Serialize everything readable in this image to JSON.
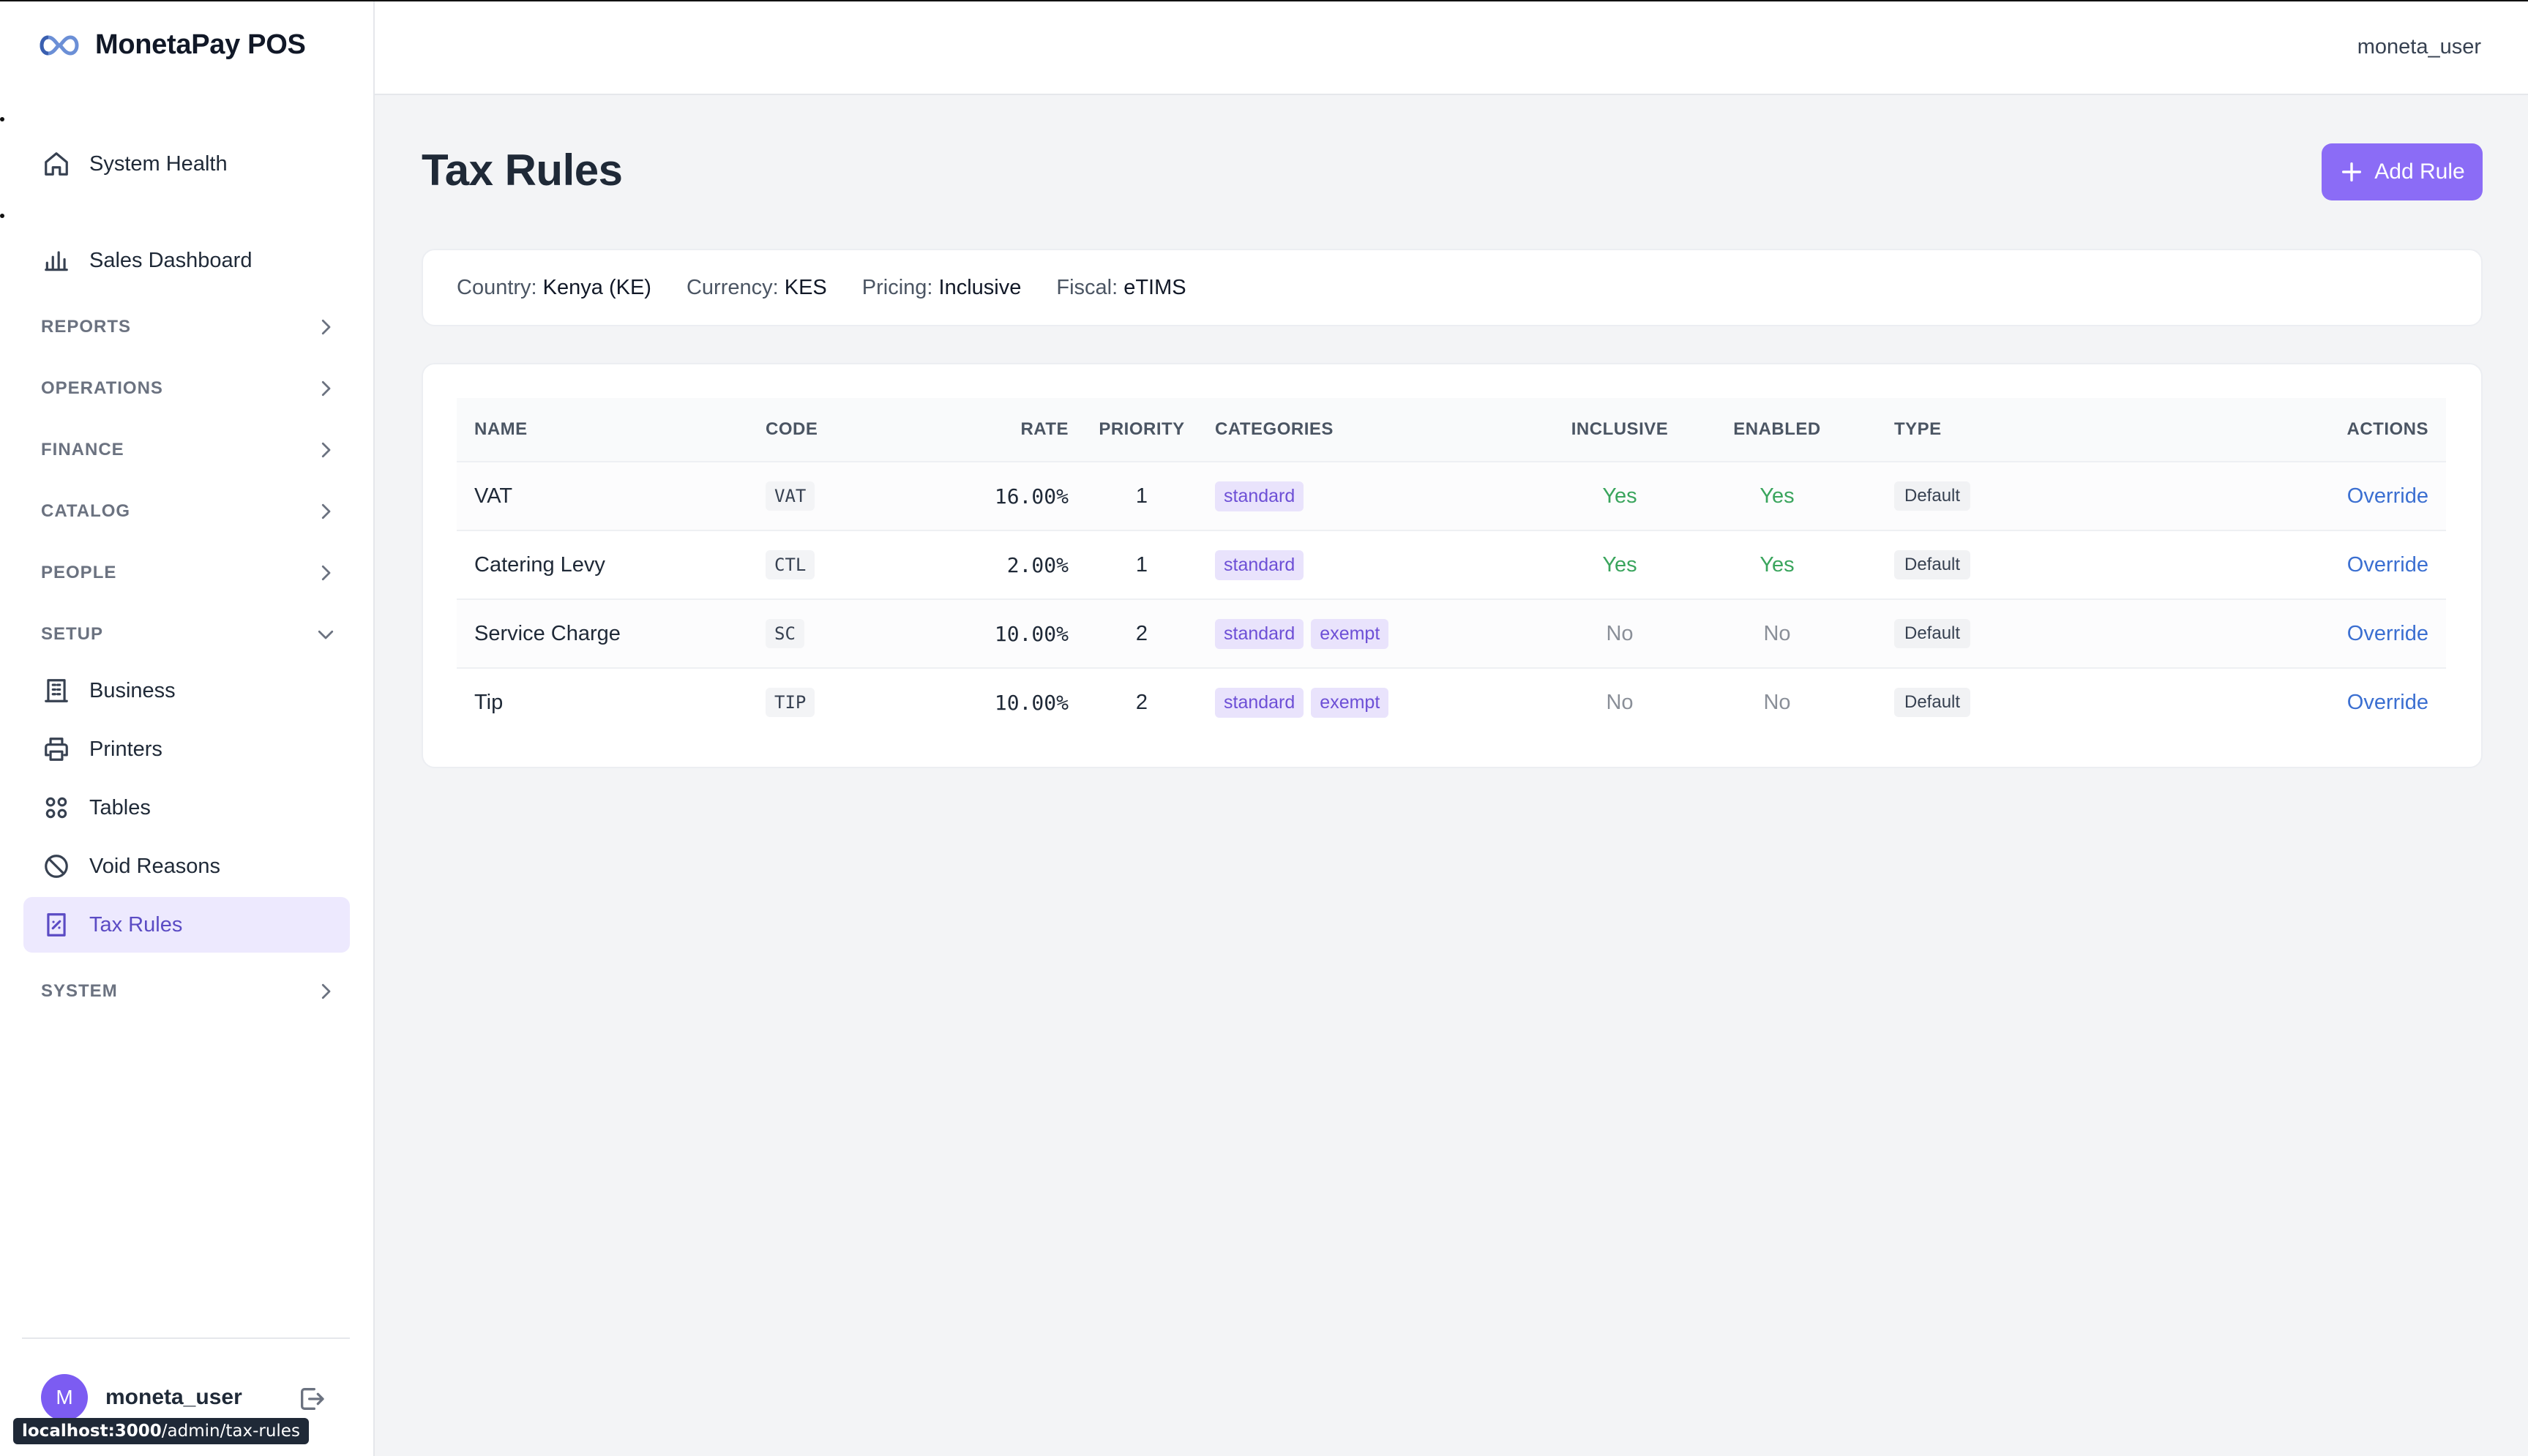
{
  "brand": {
    "name": "MonetaPay POS",
    "logo_icon": "infinity-logo-icon"
  },
  "sidebar": {
    "top_items": [
      {
        "label": "System Health",
        "icon": "home-icon"
      },
      {
        "label": "Sales Dashboard",
        "icon": "bar-chart-icon"
      }
    ],
    "sections": [
      {
        "label": "REPORTS",
        "expanded": false
      },
      {
        "label": "OPERATIONS",
        "expanded": false
      },
      {
        "label": "FINANCE",
        "expanded": false
      },
      {
        "label": "CATALOG",
        "expanded": false
      },
      {
        "label": "PEOPLE",
        "expanded": false
      },
      {
        "label": "SETUP",
        "expanded": true
      },
      {
        "label": "SYSTEM",
        "expanded": false
      }
    ],
    "setup_items": [
      {
        "label": "Business",
        "icon": "building-icon"
      },
      {
        "label": "Printers",
        "icon": "printer-icon"
      },
      {
        "label": "Tables",
        "icon": "grid-icon"
      },
      {
        "label": "Void Reasons",
        "icon": "ban-icon"
      },
      {
        "label": "Tax Rules",
        "icon": "receipt-icon",
        "active": true
      }
    ],
    "user": {
      "initial": "M",
      "name": "moneta_user"
    }
  },
  "tooltip": {
    "host": "localhost:3000",
    "path": "/admin/tax-rules"
  },
  "header": {
    "user": "moneta_user"
  },
  "page": {
    "title": "Tax Rules",
    "add_button": "Add Rule"
  },
  "info": {
    "country_label": "Country:",
    "country_value": "Kenya (KE)",
    "currency_label": "Currency:",
    "currency_value": "KES",
    "pricing_label": "Pricing:",
    "pricing_value": "Inclusive",
    "fiscal_label": "Fiscal:",
    "fiscal_value": "eTIMS"
  },
  "table": {
    "columns": [
      "NAME",
      "CODE",
      "RATE",
      "PRIORITY",
      "CATEGORIES",
      "INCLUSIVE",
      "ENABLED",
      "TYPE",
      "ACTIONS"
    ],
    "rows": [
      {
        "name": "VAT",
        "code": "VAT",
        "rate": "16.00%",
        "priority": "1",
        "categories": [
          "standard"
        ],
        "inclusive": "Yes",
        "enabled": "Yes",
        "type": "Default",
        "action": "Override"
      },
      {
        "name": "Catering Levy",
        "code": "CTL",
        "rate": "2.00%",
        "priority": "1",
        "categories": [
          "standard"
        ],
        "inclusive": "Yes",
        "enabled": "Yes",
        "type": "Default",
        "action": "Override"
      },
      {
        "name": "Service Charge",
        "code": "SC",
        "rate": "10.00%",
        "priority": "2",
        "categories": [
          "standard",
          "exempt"
        ],
        "inclusive": "No",
        "enabled": "No",
        "type": "Default",
        "action": "Override"
      },
      {
        "name": "Tip",
        "code": "TIP",
        "rate": "10.00%",
        "priority": "2",
        "categories": [
          "standard",
          "exempt"
        ],
        "inclusive": "No",
        "enabled": "No",
        "type": "Default",
        "action": "Override"
      }
    ]
  },
  "colors": {
    "accent": "#8b6cf6",
    "active_bg": "#ede9fe",
    "yes": "#3aa55d",
    "link": "#3b6fd1"
  }
}
